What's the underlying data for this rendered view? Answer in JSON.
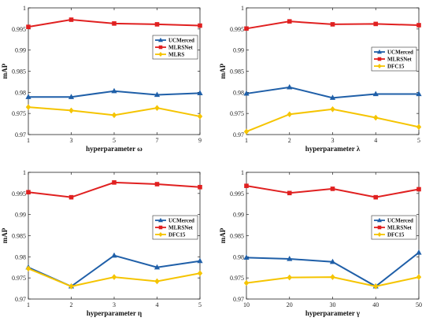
{
  "chart_data": [
    {
      "type": "line",
      "xlabel": "hyperparameter ω",
      "ylabel": "mAP",
      "x": [
        1,
        3,
        5,
        7,
        9
      ],
      "xticks": [
        "1",
        "3",
        "5",
        "7",
        "9"
      ],
      "xlim": [
        1,
        9
      ],
      "ylim": [
        0.97,
        1.0
      ],
      "yticks": [
        "0.97",
        "0.975",
        "0.98",
        "0.985",
        "0.99",
        "0.995",
        "1"
      ],
      "legend_position": "right-middle",
      "grid": false,
      "series": [
        {
          "name": "UCMerced",
          "color": "#1f5fa8",
          "marker": "triangle",
          "values": [
            0.9789,
            0.9789,
            0.9803,
            0.9794,
            0.9798
          ]
        },
        {
          "name": "MLRSNet",
          "color": "#e02020",
          "marker": "square",
          "values": [
            0.9955,
            0.9972,
            0.9963,
            0.9961,
            0.9958
          ]
        },
        {
          "name": "MLRS",
          "color": "#f5c400",
          "marker": "diamond",
          "values": [
            0.9765,
            0.9757,
            0.9746,
            0.9763,
            0.9743
          ]
        }
      ]
    },
    {
      "type": "line",
      "xlabel": "hyperparameter λ",
      "ylabel": "mAP",
      "x": [
        1,
        2,
        3,
        4,
        5
      ],
      "xticks": [
        "1",
        "2",
        "3",
        "4",
        "5"
      ],
      "xlim": [
        1,
        5
      ],
      "ylim": [
        0.97,
        1.0
      ],
      "yticks": [
        "0.97",
        "0.975",
        "0.98",
        "0.985",
        "0.99",
        "0.995",
        "1"
      ],
      "legend_position": "right-middle",
      "grid": false,
      "series": [
        {
          "name": "UCMerced",
          "color": "#1f5fa8",
          "marker": "triangle",
          "values": [
            0.9797,
            0.9812,
            0.9787,
            0.9796,
            0.9796
          ]
        },
        {
          "name": "MLRSNet",
          "color": "#e02020",
          "marker": "square",
          "values": [
            0.9951,
            0.9968,
            0.9961,
            0.9962,
            0.9959
          ]
        },
        {
          "name": "DFC15",
          "color": "#f5c400",
          "marker": "diamond",
          "values": [
            0.9707,
            0.9748,
            0.976,
            0.974,
            0.9718
          ]
        }
      ]
    },
    {
      "type": "line",
      "xlabel": "hyperparameter η",
      "ylabel": "mAP",
      "x": [
        1,
        2,
        3,
        4,
        5
      ],
      "xticks": [
        "1",
        "2",
        "3",
        "4",
        "5"
      ],
      "xlim": [
        1,
        5
      ],
      "ylim": [
        0.97,
        1.0
      ],
      "yticks": [
        "0.97",
        "0.975",
        "0.98",
        "0.985",
        "0.99",
        "0.995",
        "1"
      ],
      "legend_position": "right-middle",
      "grid": false,
      "series": [
        {
          "name": "UCMerced",
          "color": "#1f5fa8",
          "marker": "triangle",
          "values": [
            0.9775,
            0.973,
            0.9803,
            0.9775,
            0.979
          ]
        },
        {
          "name": "MLRSNet",
          "color": "#e02020",
          "marker": "square",
          "values": [
            0.9953,
            0.9941,
            0.9976,
            0.9972,
            0.9965
          ]
        },
        {
          "name": "DFC15",
          "color": "#f5c400",
          "marker": "diamond",
          "values": [
            0.9772,
            0.973,
            0.9752,
            0.9742,
            0.9761
          ]
        }
      ]
    },
    {
      "type": "line",
      "xlabel": "hyperparameter γ",
      "ylabel": "mAP",
      "x": [
        10,
        20,
        30,
        40,
        50
      ],
      "xticks": [
        "10",
        "20",
        "30",
        "40",
        "50"
      ],
      "xlim": [
        10,
        50
      ],
      "ylim": [
        0.97,
        1.0
      ],
      "yticks": [
        "0.97",
        "0.975",
        "0.98",
        "0.985",
        "0.99",
        "0.995",
        "1"
      ],
      "legend_position": "right-middle",
      "grid": false,
      "series": [
        {
          "name": "UCMerced",
          "color": "#1f5fa8",
          "marker": "triangle",
          "values": [
            0.9798,
            0.9795,
            0.9788,
            0.973,
            0.981
          ]
        },
        {
          "name": "MLRSNet",
          "color": "#e02020",
          "marker": "square",
          "values": [
            0.9968,
            0.9951,
            0.9961,
            0.9941,
            0.996
          ]
        },
        {
          "name": "DFC15",
          "color": "#f5c400",
          "marker": "diamond",
          "values": [
            0.9738,
            0.9751,
            0.9752,
            0.973,
            0.9752
          ]
        }
      ]
    }
  ]
}
